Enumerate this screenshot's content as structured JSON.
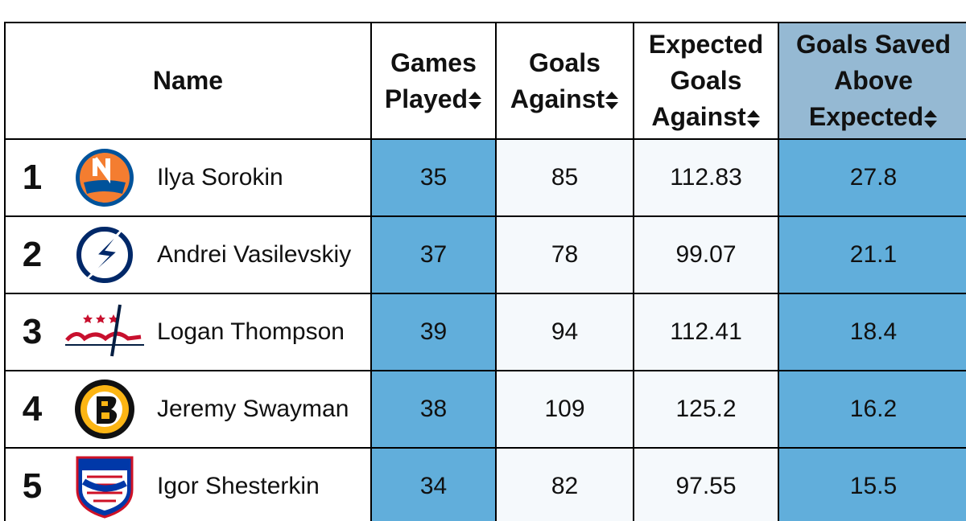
{
  "table": {
    "header": [
      "Name",
      "Games Played",
      "Goals Against",
      "Expected Goals Against",
      "Goals Saved Above Expected"
    ],
    "rows": [
      {
        "rank": 1,
        "name": "Ilya Sorokin",
        "values": [
          35,
          85,
          112.83,
          27.8
        ]
      },
      {
        "rank": 2,
        "name": "Andrei Vasilevskiy",
        "values": [
          37,
          78,
          99.07,
          21.1
        ]
      },
      {
        "rank": 3,
        "name": "Logan Thompson",
        "values": [
          39,
          94,
          112.41,
          18.4
        ]
      },
      {
        "rank": 4,
        "name": "Jeremy Swayman",
        "values": [
          38,
          109,
          125.2,
          16.2
        ]
      },
      {
        "rank": 5,
        "name": "Igor Shesterkin",
        "values": [
          34,
          82,
          97.55,
          15.5
        ]
      }
    ]
  }
}
